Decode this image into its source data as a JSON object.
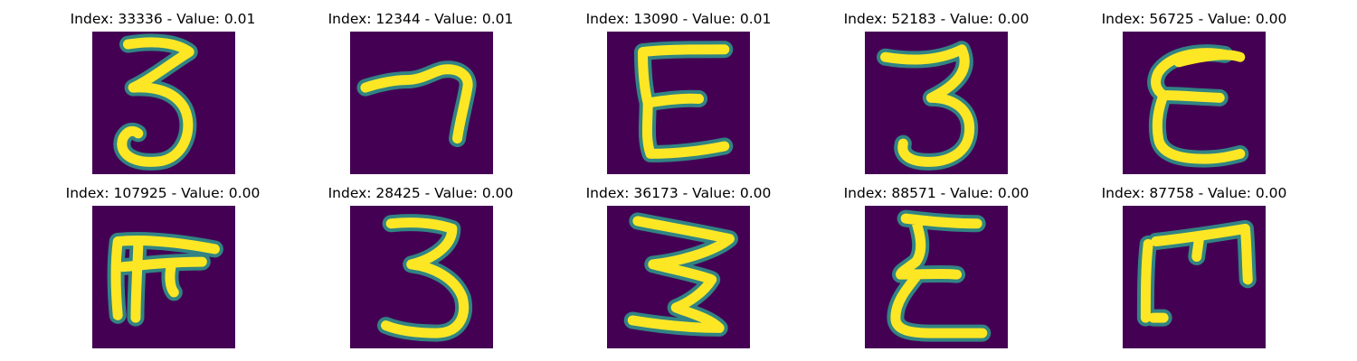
{
  "colors": {
    "background": "#440154",
    "stroke_high": "#fde725",
    "stroke_edge": "#2e9b8c"
  },
  "panels": [
    {
      "title": "Index: 33336 - Value: 0.01",
      "glyph": "three"
    },
    {
      "title": "Index: 12344 - Value: 0.01",
      "glyph": "seven"
    },
    {
      "title": "Index: 13090 - Value: 0.01",
      "glyph": "reversed-three"
    },
    {
      "title": "Index: 52183 - Value: 0.00",
      "glyph": "three"
    },
    {
      "title": "Index: 56725 - Value: 0.00",
      "glyph": "reversed-three"
    },
    {
      "title": "Index: 107925 - Value: 0.00",
      "glyph": "blob-e"
    },
    {
      "title": "Index: 28425 - Value: 0.00",
      "glyph": "three"
    },
    {
      "title": "Index: 36173 - Value: 0.00",
      "glyph": "three"
    },
    {
      "title": "Index: 88571 - Value: 0.00",
      "glyph": "reversed-three"
    },
    {
      "title": "Index: 87758 - Value: 0.00",
      "glyph": "rotated-e"
    }
  ]
}
